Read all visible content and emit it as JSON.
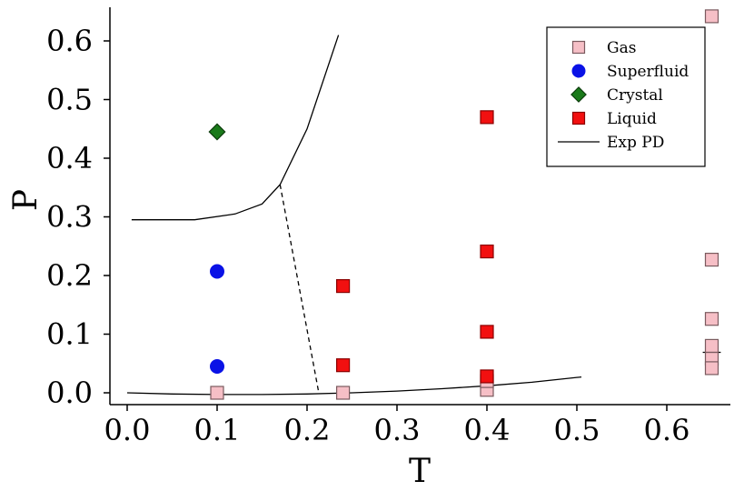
{
  "chart_data": {
    "type": "scatter",
    "xlabel": "T",
    "ylabel": "P",
    "xlim": [
      -0.01,
      0.68
    ],
    "ylim": [
      -0.02,
      0.66
    ],
    "xticks": [
      0.0,
      0.1,
      0.2,
      0.3,
      0.4,
      0.5,
      0.6
    ],
    "xtick_labels": [
      "0.0",
      "0.1",
      "0.2",
      "0.3",
      "0.4",
      "0.5",
      "0.6"
    ],
    "yticks": [
      0.0,
      0.1,
      0.2,
      0.3,
      0.4,
      0.5,
      0.6
    ],
    "ytick_labels": [
      "0.0",
      "0.1",
      "0.2",
      "0.3",
      "0.4",
      "0.5",
      "0.6"
    ],
    "grid": false,
    "legend_position": "top-right",
    "series": [
      {
        "name": "Gas",
        "marker": "square",
        "color": "#f6bfc6",
        "edge": "#7a5a5e",
        "points": [
          [
            0.1,
            0.0
          ],
          [
            0.24,
            0.0
          ],
          [
            0.4,
            0.005
          ],
          [
            0.4,
            0.02
          ],
          [
            0.65,
            0.642
          ],
          [
            0.65,
            0.227
          ],
          [
            0.65,
            0.126
          ],
          [
            0.65,
            0.08
          ],
          [
            0.65,
            0.058
          ],
          [
            0.65,
            0.042
          ]
        ]
      },
      {
        "name": "Superfluid",
        "marker": "circle",
        "color": "#0a12e6",
        "edge": "#0a12e6",
        "points": [
          [
            0.1,
            0.207
          ],
          [
            0.1,
            0.045
          ]
        ]
      },
      {
        "name": "Crystal",
        "marker": "diamond",
        "color": "#1a7a1a",
        "edge": "#0d3d0d",
        "points": [
          [
            0.1,
            0.445
          ]
        ]
      },
      {
        "name": "Liquid",
        "marker": "square",
        "color": "#f21010",
        "edge": "#8a0000",
        "points": [
          [
            0.24,
            0.182
          ],
          [
            0.24,
            0.047
          ],
          [
            0.4,
            0.47
          ],
          [
            0.4,
            0.241
          ],
          [
            0.4,
            0.104
          ],
          [
            0.4,
            0.028
          ]
        ]
      },
      {
        "name": "Exp PD",
        "type": "line",
        "color": "#000000",
        "lines": [
          {
            "style": "solid",
            "points": [
              [
                0.005,
                0.295
              ],
              [
                0.075,
                0.295
              ],
              [
                0.12,
                0.305
              ],
              [
                0.15,
                0.322
              ],
              [
                0.17,
                0.355
              ],
              [
                0.2,
                0.45
              ],
              [
                0.235,
                0.61
              ]
            ]
          },
          {
            "style": "solid",
            "points": [
              [
                0.0,
                0.0
              ],
              [
                0.05,
                -0.002
              ],
              [
                0.1,
                -0.003
              ],
              [
                0.15,
                -0.003
              ],
              [
                0.2,
                -0.002
              ],
              [
                0.25,
                0.0
              ],
              [
                0.3,
                0.003
              ],
              [
                0.35,
                0.007
              ],
              [
                0.4,
                0.012
              ],
              [
                0.45,
                0.018
              ],
              [
                0.505,
                0.027
              ]
            ]
          },
          {
            "style": "dashed",
            "points": [
              [
                0.17,
                0.355
              ],
              [
                0.213,
                0.0
              ]
            ]
          },
          {
            "style": "solid",
            "points": [
              [
                0.64,
                0.069
              ],
              [
                0.66,
                0.069
              ]
            ]
          }
        ]
      }
    ]
  }
}
